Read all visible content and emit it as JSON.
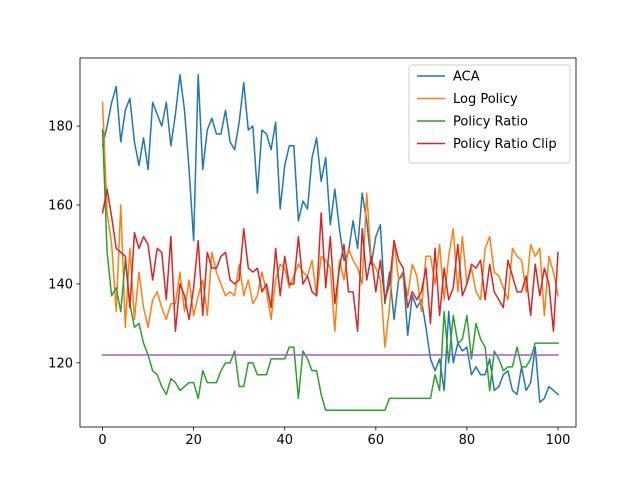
{
  "chart_data": {
    "type": "line",
    "title": "",
    "xlabel": "",
    "ylabel": "",
    "xlim": [
      -4.95,
      103.95
    ],
    "ylim": [
      103.75,
      197.25
    ],
    "xticks": [
      0,
      20,
      40,
      60,
      80,
      100
    ],
    "yticks": [
      120,
      140,
      160,
      180
    ],
    "grid": false,
    "legend_position": "top-right",
    "series": [
      {
        "name": "ACA",
        "color": "#1f77b4",
        "values": [
          175,
          180,
          186,
          190,
          176,
          184,
          187,
          176,
          170,
          177,
          169,
          186,
          183,
          180,
          186,
          175,
          183,
          193,
          184,
          169,
          151,
          193,
          169,
          179,
          182,
          178,
          178,
          184,
          176,
          174,
          181,
          191,
          179,
          180,
          163,
          179,
          178,
          174,
          181,
          159,
          170,
          175,
          175,
          156,
          161,
          159,
          172,
          177,
          166,
          172,
          155,
          164,
          154,
          146,
          148,
          156,
          149,
          163,
          156,
          145,
          152,
          155,
          135,
          143,
          131,
          141,
          143,
          127,
          137,
          134,
          136,
          129,
          121,
          118,
          121,
          113,
          133,
          120,
          125,
          123,
          124,
          117,
          119,
          117,
          117,
          121,
          113,
          114,
          117,
          118,
          113,
          112,
          119,
          113,
          115,
          124,
          110,
          111,
          114,
          113,
          112
        ]
      },
      {
        "name": "Log Policy",
        "color": "#ff7f0e",
        "values": [
          186,
          158,
          150,
          133,
          160,
          129,
          149,
          131,
          143,
          134,
          129,
          136,
          138,
          134,
          131,
          135,
          135,
          143,
          133,
          141,
          132,
          137,
          141,
          132,
          148,
          143,
          140,
          137,
          138,
          137,
          145,
          137,
          141,
          135,
          137,
          143,
          138,
          131,
          141,
          145,
          144,
          139,
          142,
          145,
          143,
          142,
          146,
          137,
          147,
          146,
          144,
          128,
          146,
          141,
          149,
          146,
          144,
          140,
          163,
          146,
          144,
          141,
          124,
          134,
          151,
          141,
          142,
          137,
          145,
          142,
          133,
          147,
          147,
          140,
          150,
          136,
          147,
          154,
          138,
          152,
          140,
          144,
          138,
          136,
          149,
          152,
          143,
          142,
          139,
          136,
          149,
          147,
          146,
          138,
          150,
          147,
          149,
          132,
          147,
          143,
          137
        ]
      },
      {
        "name": "Policy Ratio",
        "color": "#2ca02c",
        "values": [
          179,
          148,
          137,
          139,
          133,
          146,
          135,
          129,
          130,
          125,
          122,
          118,
          117,
          114,
          112,
          116,
          115,
          113,
          114,
          115,
          115,
          111,
          118,
          115,
          115,
          115,
          118,
          120,
          120,
          123,
          114,
          114,
          120,
          120,
          117,
          117,
          117,
          121,
          121,
          121,
          121,
          124,
          124,
          111,
          123,
          121,
          118,
          118,
          112,
          108,
          108,
          108,
          108,
          108,
          108,
          108,
          108,
          108,
          108,
          108,
          108,
          108,
          108,
          111,
          111,
          111,
          111,
          111,
          111,
          111,
          111,
          111,
          111,
          117,
          113,
          133,
          120,
          132,
          125,
          126,
          132,
          121,
          130,
          126,
          124,
          113,
          123,
          121,
          118,
          119,
          119,
          124,
          119,
          119,
          121,
          125,
          125,
          125,
          125,
          125,
          125
        ]
      },
      {
        "name": "Policy Ratio Clip",
        "color": "#d62728",
        "values": [
          158,
          164,
          157,
          149,
          148,
          147,
          134,
          153,
          149,
          152,
          150,
          141,
          149,
          148,
          136,
          152,
          128,
          140,
          137,
          131,
          139,
          151,
          132,
          148,
          144,
          144,
          147,
          148,
          141,
          140,
          141,
          154,
          144,
          143,
          144,
          138,
          140,
          134,
          149,
          137,
          147,
          140,
          140,
          152,
          140,
          142,
          138,
          137,
          158,
          139,
          152,
          135,
          144,
          150,
          138,
          138,
          128,
          154,
          141,
          147,
          138,
          146,
          136,
          140,
          151,
          146,
          144,
          134,
          138,
          136,
          138,
          144,
          130,
          149,
          132,
          144,
          136,
          139,
          150,
          137,
          140,
          145,
          144,
          146,
          136,
          145,
          138,
          136,
          134,
          146,
          142,
          138,
          138,
          142,
          132,
          145,
          137,
          144,
          140,
          128,
          148
        ]
      },
      {
        "name": "",
        "color": "#9467bd",
        "values": [
          122,
          122,
          122,
          122,
          122,
          122,
          122,
          122,
          122,
          122,
          122,
          122,
          122,
          122,
          122,
          122,
          122,
          122,
          122,
          122,
          122,
          122,
          122,
          122,
          122,
          122,
          122,
          122,
          122,
          122,
          122,
          122,
          122,
          122,
          122,
          122,
          122,
          122,
          122,
          122,
          122,
          122,
          122,
          122,
          122,
          122,
          122,
          122,
          122,
          122,
          122,
          122,
          122,
          122,
          122,
          122,
          122,
          122,
          122,
          122,
          122,
          122,
          122,
          122,
          122,
          122,
          122,
          122,
          122,
          122,
          122,
          122,
          122,
          122,
          122,
          122,
          122,
          122,
          122,
          122,
          122,
          122,
          122,
          122,
          122,
          122,
          122,
          122,
          122,
          122,
          122,
          122,
          122,
          122,
          122,
          122,
          122,
          122,
          122,
          122,
          122
        ]
      }
    ]
  }
}
